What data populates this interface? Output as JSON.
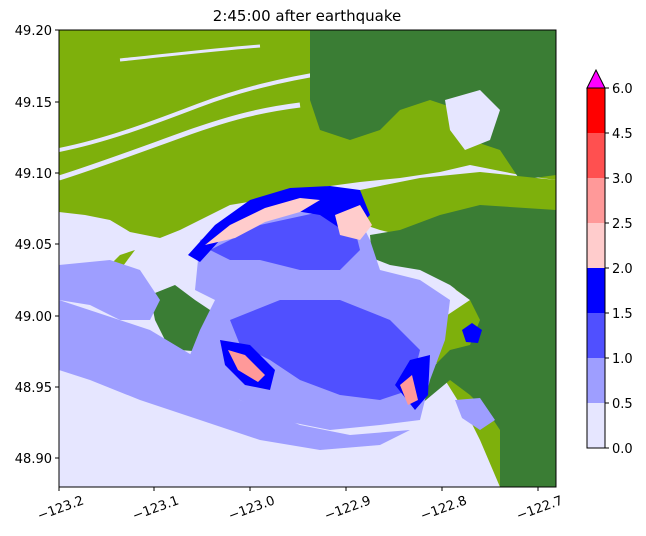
{
  "title": "2:45:00 after earthquake",
  "x_ticks": [
    "−123.2",
    "−123.1",
    "−123.0",
    "−122.9",
    "−122.8",
    "−122.7"
  ],
  "y_ticks": [
    "49.20",
    "49.15",
    "49.10",
    "49.05",
    "49.00",
    "48.95",
    "48.90"
  ],
  "colorbar": {
    "ticks": [
      "0.0",
      "0.5",
      "1.0",
      "1.5",
      "2.0",
      "2.5",
      "3.0",
      "4.5",
      "6.0"
    ],
    "colors": [
      "#e6e6ff",
      "#9e9eff",
      "#5050ff",
      "#0000ff",
      "#ffcccc",
      "#ff9999",
      "#ff5050",
      "#ff0000"
    ],
    "extend_color": "#ff00ff"
  },
  "colors": {
    "land_light": "#7eb00c",
    "land_dark": "#3a7d34",
    "water_shallow": "#e6e6ff"
  }
}
